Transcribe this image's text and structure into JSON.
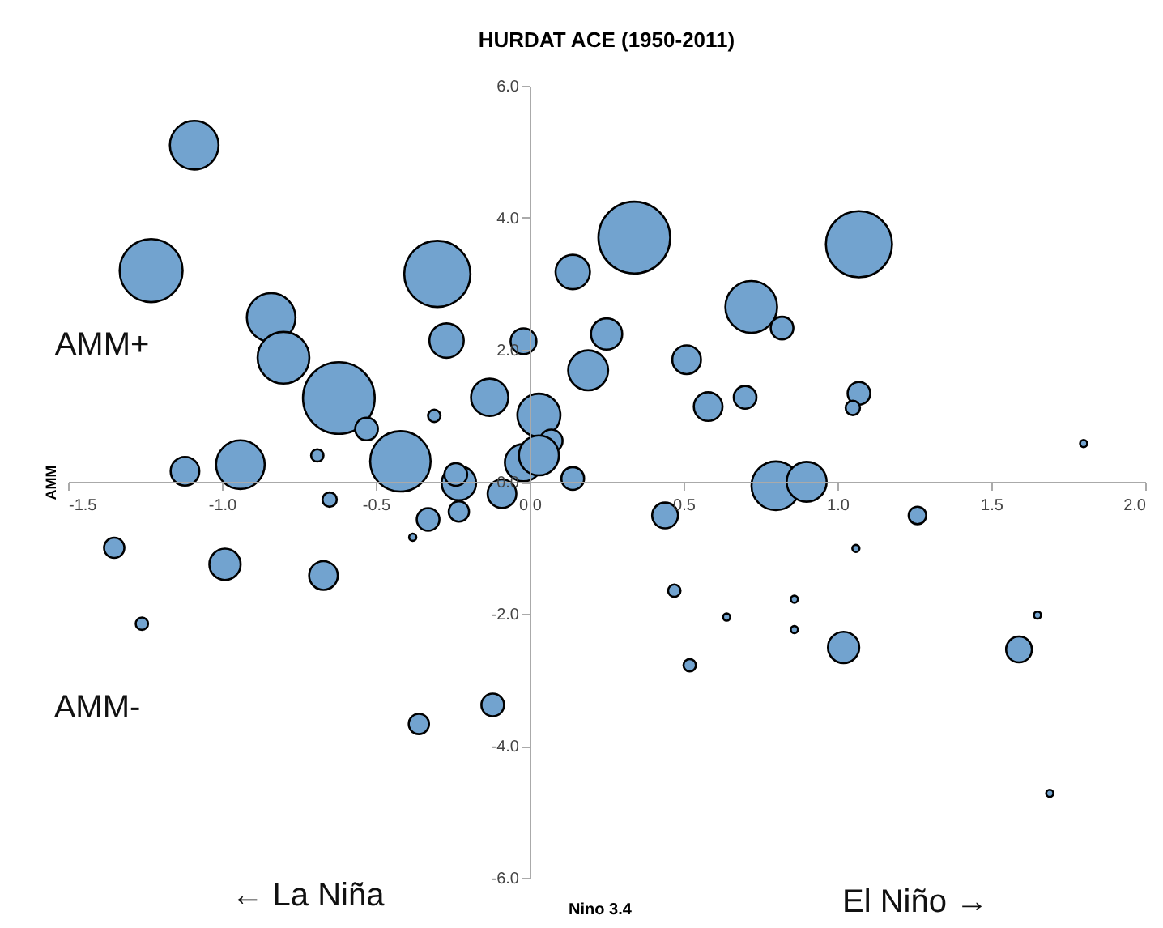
{
  "chart_data": {
    "type": "bubble",
    "title": "HURDAT ACE (1950-2011)",
    "xlabel": "Nino 3.4",
    "ylabel": "AMM",
    "annotations": [
      "AMM+",
      "AMM-",
      "← La Niña",
      "El Niño →"
    ],
    "xlim": [
      -1.5,
      2.0
    ],
    "ylim": [
      -6.0,
      6.0
    ],
    "xticks": [
      {
        "value": -1.5,
        "label": "-1.5"
      },
      {
        "value": -1.0,
        "label": "-1.0"
      },
      {
        "value": -0.5,
        "label": "-0.5"
      },
      {
        "value": 0,
        "label": "0.0"
      },
      {
        "value": 0.5,
        "label": "0.5"
      },
      {
        "value": 1.0,
        "label": "1.0"
      },
      {
        "value": 1.5,
        "label": "1.5"
      },
      {
        "value": 2.0,
        "label": "2.0"
      }
    ],
    "yticks": [
      {
        "value": -6,
        "label": "-6.0"
      },
      {
        "value": -4,
        "label": "-4.0"
      },
      {
        "value": -2,
        "label": "-2.0"
      },
      {
        "value": 0,
        "label": "0.0"
      },
      {
        "value": 2,
        "label": "2.0"
      },
      {
        "value": 4,
        "label": "4.0"
      },
      {
        "value": 6,
        "label": "6.0"
      }
    ],
    "grid": false,
    "series": [
      {
        "color": "#72a3cf",
        "x": [
          -1.09,
          -1.23,
          -0.84,
          -0.8,
          -0.62,
          -0.53,
          -0.94,
          -1.12,
          -0.69,
          -0.42,
          -0.3,
          -0.27,
          -0.31,
          -0.13,
          -0.02,
          0.03,
          0.07,
          -0.02,
          0.03,
          0.14,
          -0.23,
          -0.24,
          -0.09,
          -0.23,
          -0.33,
          -0.38,
          -0.65,
          -1.35,
          -0.99,
          -0.67,
          -1.26,
          -0.36,
          -0.12,
          0.14,
          0.34,
          1.07,
          0.72,
          0.82,
          0.25,
          0.19,
          0.51,
          0.58,
          0.7,
          1.07,
          1.05,
          1.8,
          0.8,
          0.9,
          0.44,
          1.26,
          1.06,
          0.47,
          0.86,
          0.64,
          0.86,
          1.02,
          0.52,
          1.65,
          1.59,
          1.69
        ],
        "values": [
          5.1,
          3.2,
          2.49,
          1.88,
          1.27,
          0.8,
          0.26,
          0.16,
          0.4,
          0.31,
          3.15,
          2.14,
          1.0,
          1.28,
          2.13,
          1.01,
          0.62,
          0.29,
          0.4,
          0.05,
          -0.02,
          0.11,
          -0.18,
          -0.45,
          -0.57,
          -0.84,
          -0.27,
          -1.0,
          -1.25,
          -1.42,
          -2.15,
          -3.67,
          -3.38,
          3.18,
          3.7,
          3.6,
          2.65,
          2.33,
          2.24,
          1.69,
          1.85,
          1.14,
          1.28,
          1.34,
          1.12,
          0.58,
          -0.06,
          0.0,
          -0.51,
          -0.51,
          -1.01,
          -1.65,
          -1.78,
          -2.05,
          -2.24,
          -2.51,
          -2.78,
          -2.02,
          -2.54,
          -4.72
        ],
        "sizes": [
          0.46,
          0.77,
          0.46,
          0.52,
          1.0,
          0.1,
          0.46,
          0.16,
          0.03,
          0.71,
          0.85,
          0.23,
          0.03,
          0.27,
          0.13,
          0.36,
          0.1,
          0.27,
          0.31,
          0.1,
          0.23,
          0.1,
          0.16,
          0.08,
          0.1,
          0.01,
          0.04,
          0.08,
          0.19,
          0.16,
          0.03,
          0.08,
          0.1,
          0.23,
          1.0,
          0.85,
          0.52,
          0.1,
          0.19,
          0.31,
          0.16,
          0.16,
          0.1,
          0.1,
          0.04,
          0.01,
          0.46,
          0.31,
          0.13,
          0.06,
          0.01,
          0.03,
          0.01,
          0.01,
          0.01,
          0.19,
          0.03,
          0.01,
          0.13,
          0.01
        ]
      }
    ]
  }
}
